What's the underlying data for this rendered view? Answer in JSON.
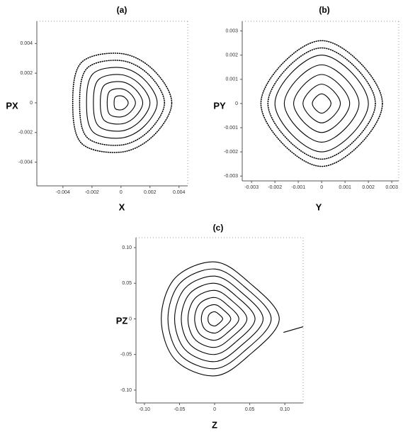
{
  "chart_data": [
    {
      "type": "line",
      "title": "(a)",
      "xlabel": "X",
      "ylabel": "PX",
      "color": "#000000",
      "xlim": [
        -0.0058,
        0.0046
      ],
      "ylim": [
        -0.0056,
        0.0055
      ],
      "xticks": [
        -0.004,
        -0.002,
        0,
        0.002,
        0.004
      ],
      "yticks": [
        0.004,
        0.002,
        0,
        -0.002,
        -0.004
      ],
      "series": [
        {
          "x": [
            0.0005,
            0.000318,
            0,
            -0.000389,
            -0.000475,
            -0.000389,
            0,
            0.000318
          ],
          "y": [
            0,
            0.000318,
            0.000475,
            0.000389,
            0,
            -0.000389,
            -0.000475,
            -0.000318
          ],
          "closed": true
        },
        {
          "x": [
            0.001,
            0.000636,
            0,
            -0.000778,
            -0.00095,
            -0.000778,
            0,
            0.000636
          ],
          "y": [
            0,
            0.000636,
            0.00095,
            0.000778,
            0,
            -0.000778,
            -0.00095,
            -0.000636
          ],
          "closed": true
        },
        {
          "x": [
            0.0015,
            0.000954,
            0,
            -0.001167,
            -0.001425,
            -0.001167,
            0,
            0.000954
          ],
          "y": [
            0,
            0.000954,
            0.001425,
            0.001167,
            0,
            -0.001167,
            -0.001425,
            -0.000954
          ],
          "closed": true
        },
        {
          "x": [
            0.002,
            0.001272,
            0,
            -0.001556,
            -0.0019,
            -0.001556,
            0,
            0.001272
          ],
          "y": [
            0,
            0.001272,
            0.0019,
            0.001556,
            0,
            -0.001556,
            -0.0019,
            -0.001272
          ],
          "closed": true
        },
        {
          "x": [
            0.0025,
            0.00159,
            0,
            -0.001945,
            -0.002375,
            -0.001945,
            0,
            0.00159
          ],
          "y": [
            0,
            0.00159,
            0.002375,
            0.001945,
            0,
            -0.001945,
            -0.002375,
            -0.00159
          ],
          "closed": true
        },
        {
          "x": [
            0.003,
            0.001908,
            0,
            -0.002334,
            -0.00285,
            -0.002334,
            0,
            0.001908
          ],
          "y": [
            0,
            0.001908,
            0.00285,
            0.002334,
            0,
            -0.002334,
            -0.00285,
            -0.001908
          ],
          "closed": true,
          "style": "dots"
        },
        {
          "x": [
            0.0035,
            0.002226,
            0,
            -0.002723,
            -0.003325,
            -0.002723,
            0,
            0.002226
          ],
          "y": [
            0,
            0.002226,
            0.003325,
            0.002723,
            0,
            -0.002723,
            -0.003325,
            -0.002226
          ],
          "closed": true,
          "style": "dots"
        }
      ]
    },
    {
      "type": "line",
      "title": "(b)",
      "xlabel": "Y",
      "ylabel": "PY",
      "color": "#000000",
      "xlim": [
        -0.0034,
        0.0033
      ],
      "ylim": [
        -0.0032,
        0.0034
      ],
      "xticks": [
        -0.003,
        -0.002,
        -0.001,
        0,
        0.001,
        0.002,
        0.003
      ],
      "yticks": [
        0.003,
        0.002,
        0.001,
        0,
        -0.001,
        -0.002,
        -0.003
      ],
      "series": [
        {
          "x": [
            0.0004,
            0.000256,
            0,
            -0.000256,
            -0.0004,
            -0.000256,
            0,
            0.000256
          ],
          "y": [
            0,
            0.000256,
            0.0004,
            0.000256,
            0,
            -0.000256,
            -0.0004,
            -0.000256
          ],
          "closed": true
        },
        {
          "x": [
            0.0008,
            0.000512,
            0,
            -0.000512,
            -0.0008,
            -0.000512,
            0,
            0.000512
          ],
          "y": [
            0,
            0.000512,
            0.0008,
            0.000512,
            0,
            -0.000512,
            -0.0008,
            -0.000512
          ],
          "closed": true
        },
        {
          "x": [
            0.0012,
            0.000768,
            0,
            -0.000768,
            -0.0012,
            -0.000768,
            0,
            0.000768
          ],
          "y": [
            0,
            0.000768,
            0.0012,
            0.000768,
            0,
            -0.000768,
            -0.0012,
            -0.000768
          ],
          "closed": true
        },
        {
          "x": [
            0.0016,
            0.001024,
            0,
            -0.001024,
            -0.0016,
            -0.001024,
            0,
            0.001024
          ],
          "y": [
            0,
            0.001024,
            0.0016,
            0.001024,
            0,
            -0.001024,
            -0.0016,
            -0.001024
          ],
          "closed": true
        },
        {
          "x": [
            0.002,
            0.00128,
            0,
            -0.00128,
            -0.002,
            -0.00128,
            0,
            0.00128
          ],
          "y": [
            0,
            0.00128,
            0.002,
            0.00128,
            0,
            -0.00128,
            -0.002,
            -0.00128
          ],
          "closed": true
        },
        {
          "x": [
            0.0023,
            0.001472,
            0,
            -0.001472,
            -0.0023,
            -0.001472,
            0,
            0.001472
          ],
          "y": [
            0,
            0.001472,
            0.0023,
            0.001472,
            0,
            -0.001472,
            -0.0023,
            -0.001472
          ],
          "closed": true,
          "style": "dots"
        },
        {
          "x": [
            0.0026,
            0.001664,
            0,
            -0.001664,
            -0.0026,
            -0.001664,
            0,
            0.001664
          ],
          "y": [
            0,
            0.001664,
            0.0026,
            0.001664,
            0,
            -0.001664,
            -0.0026,
            -0.001664
          ],
          "closed": true,
          "style": "dots"
        }
      ]
    },
    {
      "type": "line",
      "title": "(c)",
      "xlabel": "Z",
      "ylabel": "PZ",
      "color": "#000000",
      "xlim": [
        -0.112,
        0.126
      ],
      "ylim": [
        -0.118,
        0.114
      ],
      "xticks": [
        {
          "value": -0.1,
          "label": "-0.10"
        },
        -0.05,
        0,
        0.05,
        {
          "value": 0.1,
          "label": "0.10"
        }
      ],
      "yticks": [
        {
          "value": 0.1,
          "label": "0.10"
        },
        0.05,
        0,
        -0.05,
        {
          "value": -0.1,
          "label": "-0.10"
        }
      ],
      "series": [
        {
          "x": [
            0.0115,
            0.006,
            0,
            -0.007,
            -0.0095,
            -0.007,
            0,
            0.006
          ],
          "y": [
            0,
            0.0065,
            0.01,
            0.0072,
            0,
            -0.0072,
            -0.01,
            -0.0065
          ],
          "closed": true
        },
        {
          "x": [
            0.023,
            0.012,
            0,
            -0.014,
            -0.019,
            -0.014,
            0,
            0.012
          ],
          "y": [
            0,
            0.013,
            0.02,
            0.0144,
            0,
            -0.0144,
            -0.02,
            -0.013
          ],
          "closed": true
        },
        {
          "x": [
            0.0345,
            0.018,
            0,
            -0.021,
            -0.0285,
            -0.021,
            0,
            0.018
          ],
          "y": [
            0,
            0.0195,
            0.03,
            0.0216,
            0,
            -0.0216,
            -0.03,
            -0.0195
          ],
          "closed": true
        },
        {
          "x": [
            0.046,
            0.024,
            0,
            -0.028,
            -0.038,
            -0.028,
            0,
            0.024
          ],
          "y": [
            0,
            0.026,
            0.04,
            0.0288,
            0,
            -0.0288,
            -0.04,
            -0.026
          ],
          "closed": true
        },
        {
          "x": [
            0.0575,
            0.03,
            0,
            -0.035,
            -0.0475,
            -0.035,
            0,
            0.03
          ],
          "y": [
            0,
            0.0325,
            0.05,
            0.036,
            0,
            -0.036,
            -0.05,
            -0.0325
          ],
          "closed": true
        },
        {
          "x": [
            0.069,
            0.036,
            0,
            -0.042,
            -0.057,
            -0.042,
            0,
            0.036
          ],
          "y": [
            0,
            0.039,
            0.06,
            0.0432,
            0,
            -0.0432,
            -0.06,
            -0.039
          ],
          "closed": true
        },
        {
          "x": [
            0.0805,
            0.042,
            0,
            -0.049,
            -0.0665,
            -0.049,
            0,
            0.042
          ],
          "y": [
            0,
            0.0455,
            0.07,
            0.0504,
            0,
            -0.0504,
            -0.07,
            -0.0455
          ],
          "closed": true
        },
        {
          "x": [
            0.092,
            0.048,
            0,
            -0.056,
            -0.076,
            -0.056,
            0,
            0.048
          ],
          "y": [
            0,
            0.052,
            0.08,
            0.0576,
            0,
            -0.0576,
            -0.08,
            -0.052
          ],
          "closed": true
        },
        {
          "x": [
            0.098,
            0.126
          ],
          "y": [
            -0.019,
            -0.011
          ],
          "closed": false
        }
      ]
    }
  ]
}
